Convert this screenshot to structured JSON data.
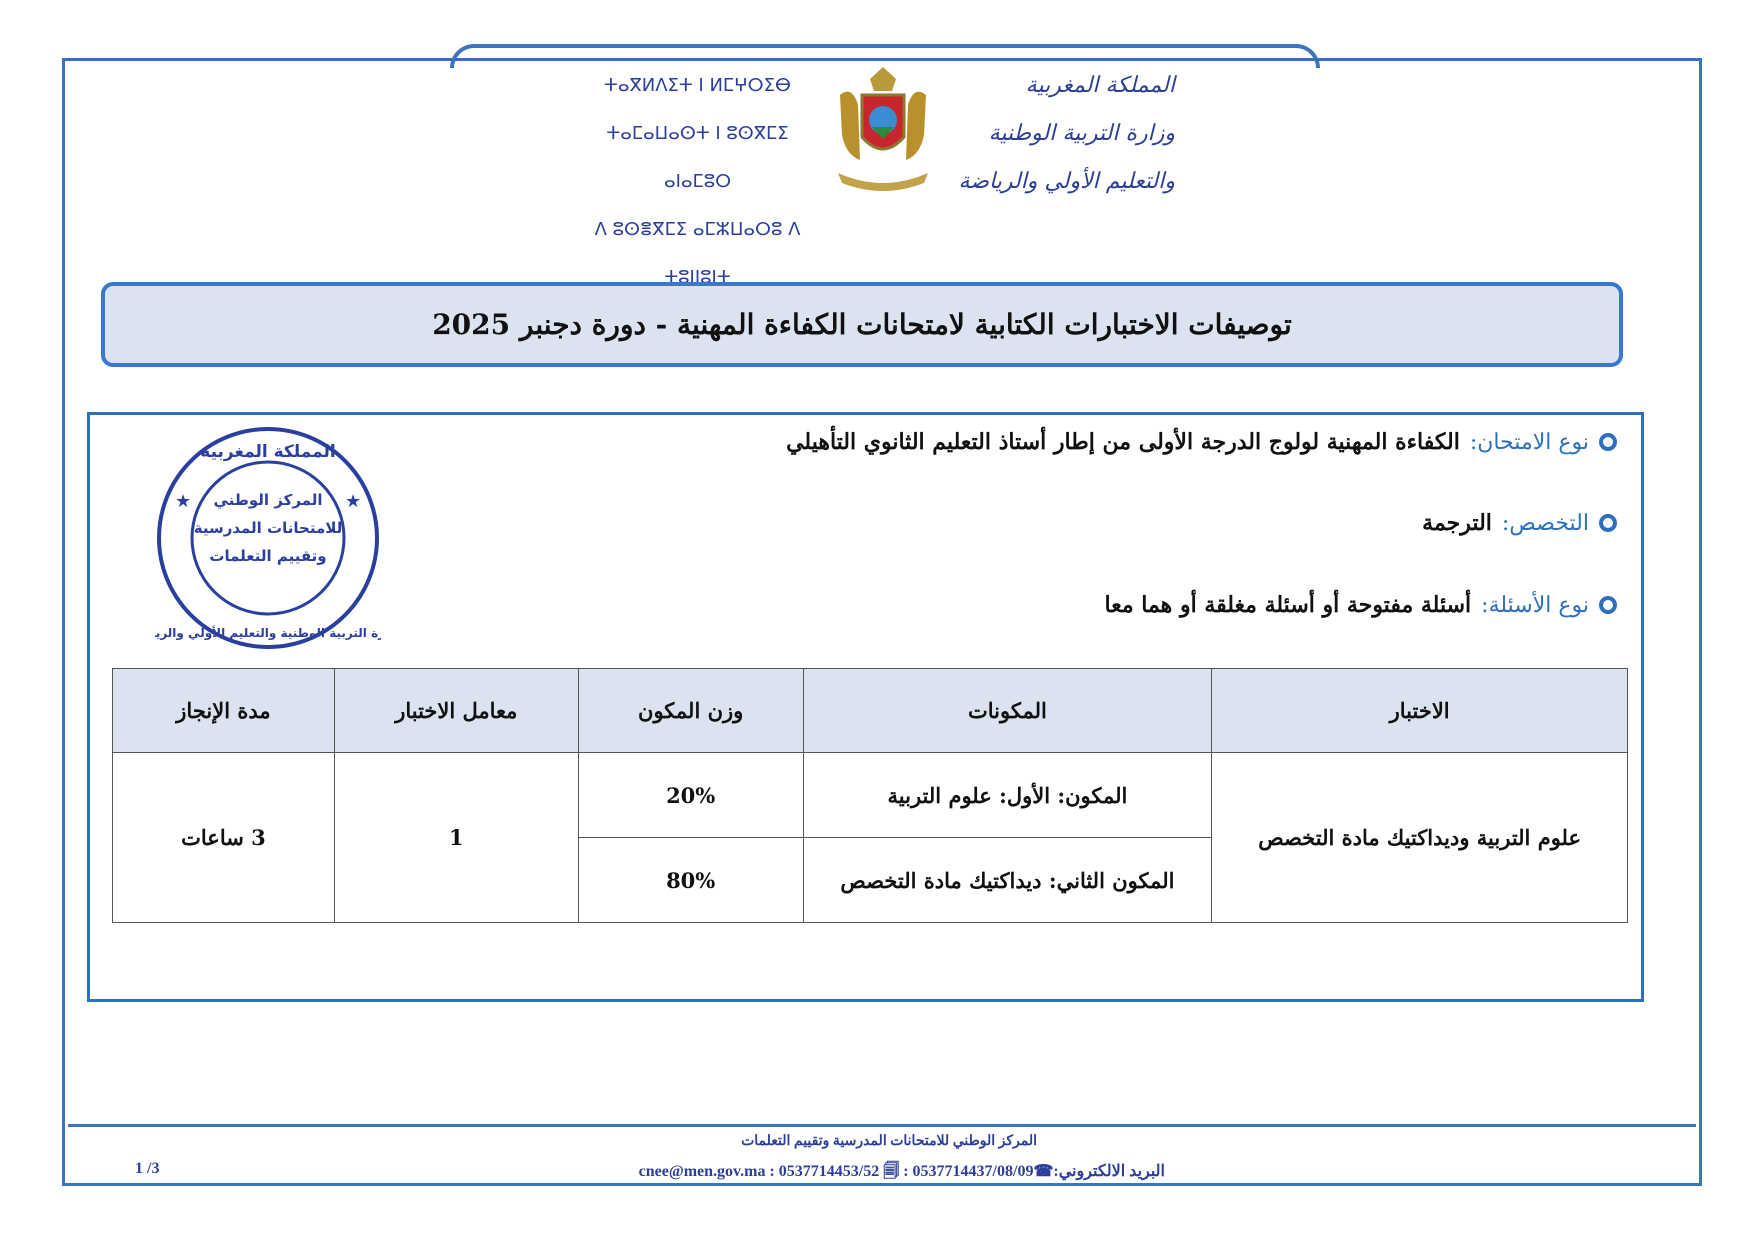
{
  "header": {
    "arabic_lines": [
      "المملكة المغربية",
      "وزارة التربية الوطنية",
      "والتعليم الأولي والرياضة"
    ],
    "tifinagh_lines": [
      "ⵜⴰⴳⵍⴷⵉⵜ ⵏ ⵍⵎⵖⵔⵉⴱ",
      "ⵜⴰⵎⴰⵡⴰⵙⵜ ⵏ ⵓⵙⴳⵎⵉ ⴰⵏⴰⵎⵓⵔ",
      "ⴷ ⵓⵙⴻⴳⵎⵉ ⴰⵎⵣⵡⴰⵔⵓ ⴷ ⵜⵓⵏⵏⵓⵏⵜ"
    ],
    "emblem": "royal-coat-of-arms"
  },
  "title": "توصيفات الاختبارات الكتابية لامتحانات الكفاءة المهنية - دورة دجنبر 2025",
  "info": [
    {
      "label": "نوع الامتحان:",
      "value": "الكفاءة المهنية لولوج الدرجة الأولى من إطار أستاذ التعليم الثانوي التأهيلي"
    },
    {
      "label": "التخصص:",
      "value": "الترجمة"
    },
    {
      "label": "نوع الأسئلة:",
      "value": "أسئلة مفتوحة أو أسئلة مغلقة أو هما معا"
    }
  ],
  "stamp": {
    "outer": "المملكة المغربية - وزارة التربية الوطنية والتعليم الأولي والرياضة",
    "inner": [
      "المركز الوطني",
      "للامتحانات المدرسية",
      "وتقييم التعلمات"
    ]
  },
  "table": {
    "headers": [
      "الاختبار",
      "المكونات",
      "وزن المكون",
      "معامل الاختبار",
      "مدة الإنجاز"
    ],
    "exam": "علوم التربية وديداكتيك مادة التخصص",
    "components": [
      {
        "name": "المكون: الأول: علوم التربية",
        "weight": "20%"
      },
      {
        "name": "المكون الثاني: ديداكتيك مادة التخصص",
        "weight": "80%"
      }
    ],
    "coefficient": "1",
    "duration": "3 ساعات"
  },
  "footer": {
    "org": "المركز الوطني للامتحانات المدرسية وتقييم التعلمات",
    "contact": "البريد الالكتروني:☎cnee@men.gov.ma : 0537714453/52 🗐 : 0537714437/08/09",
    "page": "1 /3"
  },
  "colors": {
    "accent": "#2f70bd",
    "title_bg": "#dbe3f1",
    "header_text": "#2b3f9a"
  }
}
